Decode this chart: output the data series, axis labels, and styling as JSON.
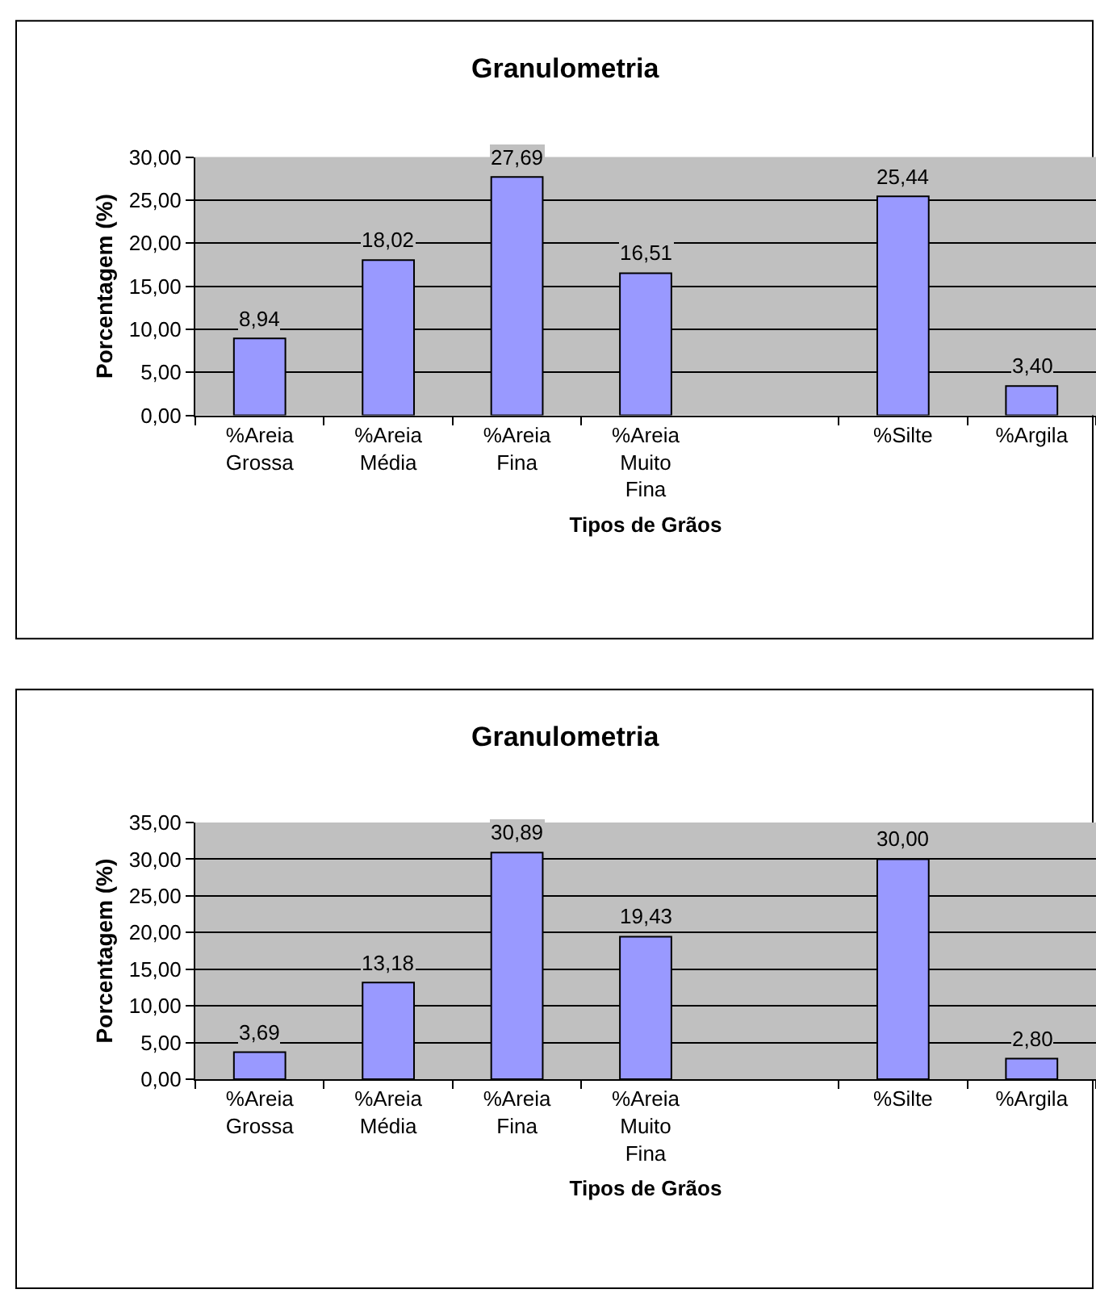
{
  "chart_data": [
    {
      "type": "bar",
      "title": "Granulometria",
      "xlabel": "Tipos de Grãos",
      "ylabel": "Porcentagem (%)",
      "categories": [
        "%Areia Grossa",
        "%Areia Média",
        "%Areia Fina",
        "%Areia Muito Fina",
        null,
        "%Silte",
        "%Argila"
      ],
      "values": [
        8.94,
        18.02,
        27.69,
        16.51,
        null,
        25.44,
        3.4
      ],
      "value_labels": [
        "8,94",
        "18,02",
        "27,69",
        "16,51",
        null,
        "25,44",
        "3,40"
      ],
      "color": "#9999ff",
      "ylim": [
        0,
        30
      ],
      "yticks": [
        {
          "value": 0,
          "label": "0,00"
        },
        {
          "value": 5,
          "label": "5,00"
        },
        {
          "value": 10,
          "label": "10,00"
        },
        {
          "value": 15,
          "label": "15,00"
        },
        {
          "value": 20,
          "label": "20,00"
        },
        {
          "value": 25,
          "label": "25,00"
        },
        {
          "value": 30,
          "label": "30,00"
        }
      ],
      "grid": "y"
    },
    {
      "type": "bar",
      "title": "Granulometria",
      "xlabel": "Tipos de Grãos",
      "ylabel": "Porcentagem (%)",
      "categories": [
        "%Areia Grossa",
        "%Areia Média",
        "%Areia Fina",
        "%Areia Muito Fina",
        null,
        "%Silte",
        "%Argila"
      ],
      "values": [
        3.69,
        13.18,
        30.89,
        19.43,
        null,
        30.0,
        2.8
      ],
      "value_labels": [
        "3,69",
        "13,18",
        "30,89",
        "19,43",
        null,
        "30,00",
        "2,80"
      ],
      "color": "#9999ff",
      "ylim": [
        0,
        35
      ],
      "yticks": [
        {
          "value": 0,
          "label": "0,00"
        },
        {
          "value": 5,
          "label": "5,00"
        },
        {
          "value": 10,
          "label": "10,00"
        },
        {
          "value": 15,
          "label": "15,00"
        },
        {
          "value": 20,
          "label": "20,00"
        },
        {
          "value": 25,
          "label": "25,00"
        },
        {
          "value": 30,
          "label": "30,00"
        },
        {
          "value": 35,
          "label": "35,00"
        }
      ],
      "grid": "y"
    }
  ]
}
